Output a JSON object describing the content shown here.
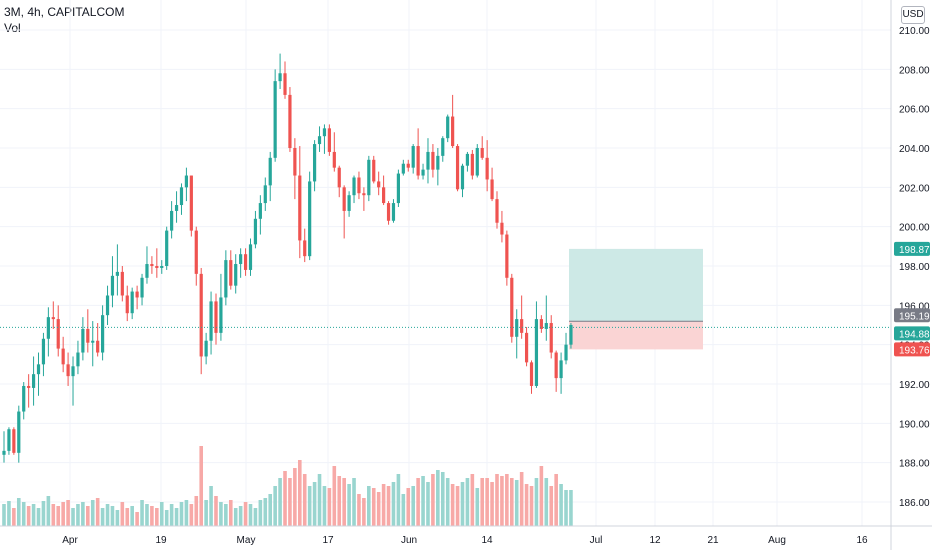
{
  "legend": {
    "title": "3M, 4h, CAPITALCOM",
    "volume_label": "Vol"
  },
  "currency": "USD",
  "colors": {
    "up": "#26a69a",
    "down": "#ef5350",
    "vol_up": "#99d5cf",
    "vol_down": "#f7a9a7",
    "target_zone": "#cde9e6",
    "stop_zone": "#fad4d4",
    "last_price": "#26a69a"
  },
  "chart_data": {
    "type": "candlestick",
    "y_ticks": [
      "186.00",
      "188.00",
      "190.00",
      "192.00",
      "194.00",
      "196.00",
      "198.00",
      "200.00",
      "202.00",
      "204.00",
      "206.00",
      "208.00",
      "210.00"
    ],
    "x_ticks": [
      "Apr",
      "19",
      "May",
      "17",
      "Jun",
      "14",
      "Jul",
      "12",
      "21",
      "Aug",
      "16"
    ],
    "ylim": [
      184.8,
      210.8
    ],
    "candles": [
      [
        188.4,
        189.6,
        188.0,
        188.6
      ],
      [
        188.6,
        189.8,
        188.4,
        189.7
      ],
      [
        189.7,
        189.8,
        188.4,
        188.5
      ],
      [
        188.5,
        190.9,
        188.0,
        190.6
      ],
      [
        190.6,
        192.1,
        190.2,
        191.9
      ],
      [
        191.9,
        192.5,
        190.8,
        191.8
      ],
      [
        191.8,
        193.4,
        190.9,
        192.5
      ],
      [
        192.5,
        193.6,
        191.4,
        193.0
      ],
      [
        193.0,
        194.6,
        192.4,
        194.3
      ],
      [
        194.3,
        195.9,
        193.4,
        195.4
      ],
      [
        195.4,
        196.2,
        194.8,
        195.3
      ],
      [
        195.3,
        196.0,
        193.4,
        193.8
      ],
      [
        193.8,
        194.4,
        192.6,
        193.0
      ],
      [
        193.0,
        193.6,
        191.9,
        192.4
      ],
      [
        192.4,
        193.4,
        190.9,
        192.9
      ],
      [
        192.9,
        194.2,
        192.5,
        193.6
      ],
      [
        193.6,
        195.4,
        193.2,
        194.8
      ],
      [
        194.8,
        195.8,
        193.6,
        194.1
      ],
      [
        194.1,
        195.2,
        192.9,
        194.2
      ],
      [
        194.2,
        195.1,
        193.4,
        193.6
      ],
      [
        193.6,
        196.0,
        193.2,
        195.5
      ],
      [
        195.5,
        197.0,
        195.0,
        196.5
      ],
      [
        196.5,
        198.5,
        195.9,
        197.5
      ],
      [
        197.5,
        199.1,
        196.5,
        197.7
      ],
      [
        197.7,
        198.0,
        196.2,
        196.5
      ],
      [
        196.5,
        197.0,
        195.2,
        195.6
      ],
      [
        195.6,
        196.9,
        195.3,
        196.7
      ],
      [
        196.7,
        197.0,
        195.8,
        196.4
      ],
      [
        196.4,
        197.6,
        196.0,
        197.4
      ],
      [
        197.4,
        199.0,
        197.1,
        198.1
      ],
      [
        198.1,
        198.5,
        197.6,
        198.0
      ],
      [
        198.0,
        198.9,
        197.4,
        197.9
      ],
      [
        197.9,
        198.3,
        197.6,
        198.0
      ],
      [
        198.0,
        200.0,
        197.8,
        199.8
      ],
      [
        199.8,
        201.3,
        199.4,
        200.8
      ],
      [
        200.8,
        201.8,
        200.2,
        201.1
      ],
      [
        201.1,
        202.2,
        200.6,
        202.0
      ],
      [
        202.0,
        203.0,
        201.3,
        202.6
      ],
      [
        202.6,
        202.6,
        199.5,
        199.8
      ],
      [
        199.8,
        200.0,
        197.0,
        197.6
      ],
      [
        197.6,
        197.9,
        192.5,
        193.4
      ],
      [
        193.4,
        194.6,
        193.0,
        194.2
      ],
      [
        194.2,
        196.7,
        193.5,
        196.2
      ],
      [
        196.2,
        196.6,
        194.0,
        194.6
      ],
      [
        194.6,
        197.6,
        194.2,
        196.4
      ],
      [
        196.4,
        198.8,
        196.0,
        198.3
      ],
      [
        198.3,
        198.8,
        196.8,
        197.0
      ],
      [
        197.0,
        198.6,
        196.6,
        198.1
      ],
      [
        198.1,
        198.9,
        197.4,
        198.6
      ],
      [
        198.6,
        198.9,
        197.5,
        197.8
      ],
      [
        197.8,
        199.4,
        197.5,
        199.1
      ],
      [
        199.1,
        200.8,
        198.9,
        200.4
      ],
      [
        200.4,
        201.6,
        199.6,
        201.2
      ],
      [
        201.2,
        202.5,
        200.8,
        202.1
      ],
      [
        202.1,
        203.8,
        201.3,
        203.5
      ],
      [
        203.5,
        208.0,
        203.3,
        207.4
      ],
      [
        207.4,
        208.8,
        207.0,
        207.8
      ],
      [
        207.8,
        208.4,
        206.5,
        206.7
      ],
      [
        206.7,
        207.1,
        203.8,
        204.0
      ],
      [
        204.0,
        204.5,
        201.4,
        202.6
      ],
      [
        202.6,
        204.1,
        198.4,
        199.3
      ],
      [
        199.3,
        199.9,
        198.2,
        198.5
      ],
      [
        198.5,
        202.8,
        198.3,
        202.3
      ],
      [
        202.3,
        204.4,
        201.8,
        204.2
      ],
      [
        204.2,
        205.1,
        203.8,
        204.6
      ],
      [
        204.6,
        205.2,
        203.7,
        205.0
      ],
      [
        205.0,
        205.2,
        203.6,
        203.8
      ],
      [
        203.8,
        204.8,
        202.8,
        203.0
      ],
      [
        203.0,
        203.1,
        201.5,
        202.0
      ],
      [
        202.0,
        202.1,
        199.4,
        200.8
      ],
      [
        200.8,
        201.8,
        200.5,
        201.6
      ],
      [
        201.6,
        202.6,
        201.2,
        202.5
      ],
      [
        202.5,
        202.8,
        201.4,
        201.7
      ],
      [
        201.7,
        202.0,
        200.8,
        201.6
      ],
      [
        201.6,
        203.6,
        201.3,
        203.4
      ],
      [
        203.4,
        203.6,
        202.2,
        202.3
      ],
      [
        202.3,
        202.8,
        201.6,
        202.0
      ],
      [
        202.0,
        202.6,
        201.1,
        201.2
      ],
      [
        201.2,
        201.3,
        200.1,
        200.3
      ],
      [
        200.3,
        201.4,
        200.2,
        201.2
      ],
      [
        201.2,
        202.9,
        201.0,
        202.7
      ],
      [
        202.7,
        203.4,
        202.6,
        203.2
      ],
      [
        203.2,
        203.4,
        202.8,
        203.0
      ],
      [
        203.0,
        204.2,
        202.7,
        204.1
      ],
      [
        204.1,
        205.0,
        202.4,
        202.6
      ],
      [
        202.6,
        203.2,
        202.4,
        202.9
      ],
      [
        202.9,
        204.5,
        202.2,
        203.8
      ],
      [
        203.8,
        204.2,
        202.5,
        202.9
      ],
      [
        202.9,
        204.0,
        202.1,
        203.6
      ],
      [
        203.6,
        204.6,
        203.3,
        204.5
      ],
      [
        204.5,
        205.7,
        204.3,
        205.6
      ],
      [
        205.6,
        206.7,
        204.0,
        204.1
      ],
      [
        204.1,
        204.2,
        201.8,
        201.9
      ],
      [
        201.9,
        203.2,
        201.5,
        203.1
      ],
      [
        203.1,
        203.8,
        202.8,
        203.7
      ],
      [
        203.7,
        203.9,
        202.4,
        202.6
      ],
      [
        202.6,
        204.2,
        202.5,
        204.0
      ],
      [
        204.0,
        204.6,
        203.4,
        203.5
      ],
      [
        203.5,
        204.4,
        201.8,
        202.4
      ],
      [
        202.4,
        203.0,
        201.3,
        201.4
      ],
      [
        201.4,
        201.8,
        199.9,
        200.2
      ],
      [
        200.2,
        200.8,
        199.2,
        199.6
      ],
      [
        199.6,
        199.8,
        197.0,
        197.4
      ],
      [
        197.4,
        197.6,
        194.1,
        194.4
      ],
      [
        194.4,
        195.8,
        193.3,
        195.3
      ],
      [
        195.3,
        196.5,
        194.3,
        194.6
      ],
      [
        194.6,
        194.9,
        192.9,
        193.1
      ],
      [
        193.1,
        193.2,
        191.5,
        191.9
      ],
      [
        191.9,
        196.2,
        191.8,
        195.3
      ],
      [
        195.3,
        195.5,
        194.6,
        194.8
      ],
      [
        194.8,
        196.5,
        194.2,
        195.1
      ],
      [
        195.1,
        195.5,
        193.3,
        193.6
      ],
      [
        193.6,
        193.7,
        191.6,
        192.3
      ],
      [
        192.3,
        193.6,
        191.5,
        193.2
      ],
      [
        193.2,
        194.6,
        193.0,
        194.0
      ],
      [
        194.0,
        195.1,
        193.8,
        195.0
      ]
    ],
    "volume_heights": [
      22,
      25,
      18,
      28,
      24,
      20,
      22,
      18,
      25,
      30,
      22,
      20,
      24,
      26,
      18,
      22,
      24,
      20,
      26,
      28,
      18,
      22,
      20,
      16,
      24,
      18,
      20,
      14,
      26,
      22,
      20,
      18,
      24,
      16,
      22,
      18,
      24,
      26,
      22,
      30,
      80,
      26,
      40,
      30,
      24,
      22,
      26,
      18,
      20,
      24,
      22,
      18,
      26,
      28,
      32,
      40,
      48,
      55,
      48,
      58,
      66,
      52,
      40,
      44,
      52,
      40,
      38,
      60,
      50,
      48,
      42,
      48,
      32,
      28,
      40,
      38,
      34,
      42,
      40,
      44,
      52,
      32,
      38,
      40,
      48,
      50,
      44,
      52,
      56,
      54,
      48,
      42,
      40,
      44,
      48,
      52,
      38,
      48,
      48,
      44,
      52,
      50,
      52,
      48,
      46,
      54,
      42,
      40,
      48,
      60,
      48,
      40,
      52,
      42,
      36,
      36
    ],
    "current_price": 194.88,
    "price_badges": [
      {
        "label": "198.87",
        "value": 198.87,
        "kind": "target"
      },
      {
        "label": "195.19",
        "value": 195.19,
        "kind": "entry"
      },
      {
        "label": "194.88",
        "value": 194.88,
        "kind": "last"
      },
      {
        "label": "193.76",
        "value": 193.76,
        "kind": "stop"
      }
    ],
    "position": {
      "entry": 195.19,
      "target": 198.87,
      "stop": 193.76
    }
  }
}
